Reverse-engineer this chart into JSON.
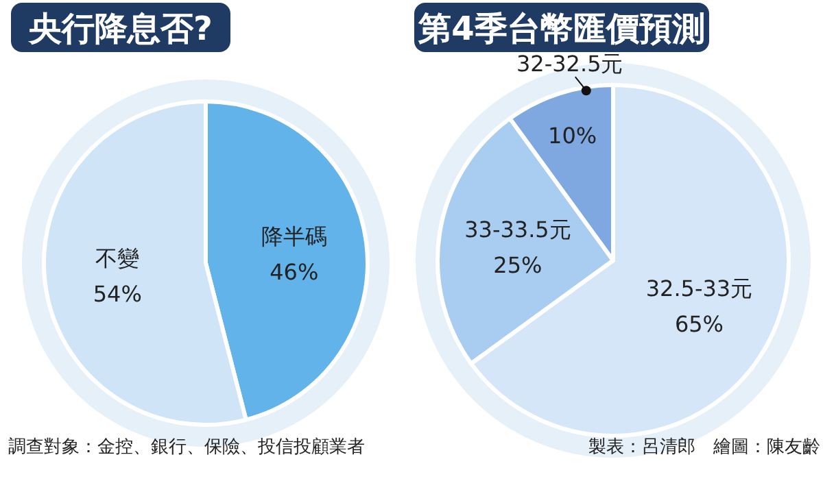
{
  "chart_data": [
    {
      "type": "pie",
      "title": "央行降息否?",
      "categories": [
        "降半碼",
        "不變"
      ],
      "values": [
        46,
        54
      ],
      "colors": [
        "#62b3ea",
        "#cfe4f6"
      ],
      "value_labels": [
        "46%",
        "54%"
      ],
      "annotations": [
        "調查對象：金控、銀行、保險、投信投顧業者"
      ]
    },
    {
      "type": "pie",
      "title": "第4季台幣匯價預測",
      "categories": [
        "32.5-33元",
        "33-33.5元",
        "32-32.5元"
      ],
      "values": [
        65,
        25,
        10
      ],
      "colors": [
        "#d4e6f7",
        "#a9cdf0",
        "#7fa8e0"
      ],
      "value_labels": [
        "65%",
        "25%",
        "10%"
      ],
      "annotations": [
        "製表：呂清郎　繪圖：陳友齡"
      ]
    }
  ]
}
